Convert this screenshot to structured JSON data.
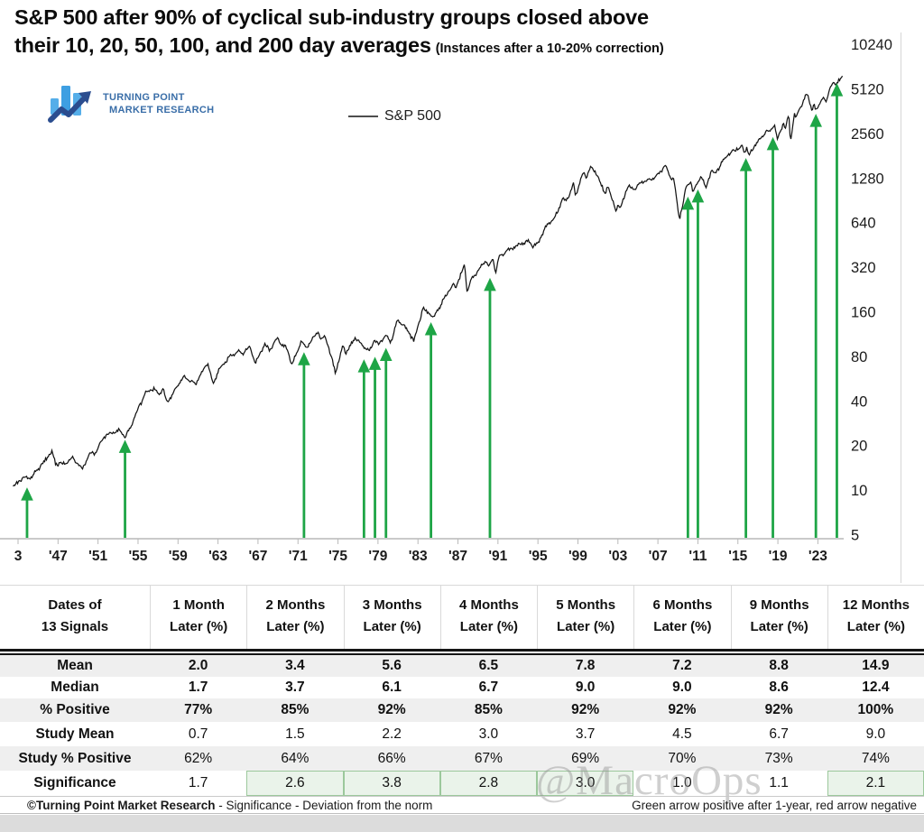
{
  "title": {
    "line1": "S&P 500 after 90% of cyclical sub-industry groups closed above",
    "line2": "their 10, 20, 50, 100, and 200 day averages",
    "subtitle": "(Instances after a 10-20% correction)"
  },
  "logo": {
    "line1": "TURNING POINT",
    "line2": "MARKET RESEARCH"
  },
  "legend": {
    "label": "S&P 500"
  },
  "watermark": "@MacroOps",
  "colors": {
    "arrow_green": "#1ea546",
    "line": "#141414",
    "axis_gray": "#b9b9b9",
    "frame_gray": "#d9d9d9",
    "row_alt": "#efefef",
    "highlight_bg": "#eaf3ea",
    "highlight_border": "#9cc89c",
    "logo_light_blue": "#55aee9",
    "logo_mid_blue": "#3e9fe2",
    "logo_navy": "#2b4d8f"
  },
  "chart_data": {
    "type": "line",
    "title": "S&P 500 after 90% of cyclical sub-industry groups closed above their 10, 20, 50, 100, and 200 day averages (Instances after a 10-20% correction)",
    "ylabel": "",
    "xlabel": "",
    "y_scale": "log2",
    "grid": false,
    "legend_position": "top-center",
    "y_ticks": [
      10240,
      5120,
      2560,
      1280,
      640,
      320,
      160,
      80,
      40,
      20,
      10,
      5
    ],
    "x_tick_labels": [
      "3",
      "'47",
      "'51",
      "'55",
      "'59",
      "'63",
      "'67",
      "'71",
      "'75",
      "'79",
      "'83",
      "'87",
      "'91",
      "'95",
      "'99",
      "'03",
      "'07",
      "'11",
      "'15",
      "'19",
      "'23"
    ],
    "x_tick_years": [
      1943,
      1947,
      1951,
      1955,
      1959,
      1963,
      1967,
      1971,
      1975,
      1979,
      1983,
      1987,
      1991,
      1995,
      1999,
      2003,
      2007,
      2011,
      2015,
      2019,
      2023
    ],
    "x_range": [
      1942.5,
      2025.5
    ],
    "y_range": [
      5,
      10240
    ],
    "series": [
      {
        "name": "S&P 500",
        "points": [
          [
            1942.5,
            10.8
          ],
          [
            1943.0,
            11.3
          ],
          [
            1943.6,
            12.4
          ],
          [
            1944.2,
            12.1
          ],
          [
            1945.0,
            13.9
          ],
          [
            1945.9,
            16.6
          ],
          [
            1946.4,
            18.6
          ],
          [
            1946.75,
            15.0
          ],
          [
            1947.3,
            15.4
          ],
          [
            1947.8,
            15.0
          ],
          [
            1948.4,
            16.9
          ],
          [
            1949.0,
            15.1
          ],
          [
            1949.45,
            13.9
          ],
          [
            1950.0,
            16.8
          ],
          [
            1950.5,
            18.5
          ],
          [
            1950.65,
            17.7
          ],
          [
            1951.4,
            22.2
          ],
          [
            1951.8,
            23.4
          ],
          [
            1952.6,
            24.9
          ],
          [
            1953.2,
            25.6
          ],
          [
            1953.7,
            23.1
          ],
          [
            1954.3,
            27.5
          ],
          [
            1955.0,
            35.5
          ],
          [
            1955.8,
            45.8
          ],
          [
            1956.6,
            48.7
          ],
          [
            1957.1,
            44.8
          ],
          [
            1957.5,
            48.3
          ],
          [
            1957.95,
            39.3
          ],
          [
            1958.6,
            46.5
          ],
          [
            1959.6,
            59.8
          ],
          [
            1960.2,
            55.3
          ],
          [
            1960.8,
            53.2
          ],
          [
            1961.95,
            72.6
          ],
          [
            1962.5,
            52.6
          ],
          [
            1963.1,
            65.5
          ],
          [
            1964.0,
            78.0
          ],
          [
            1965.0,
            87.5
          ],
          [
            1965.35,
            82.5
          ],
          [
            1966.1,
            93.8
          ],
          [
            1966.75,
            73.5
          ],
          [
            1967.7,
            97.2
          ],
          [
            1968.15,
            88.5
          ],
          [
            1968.9,
            107.5
          ],
          [
            1969.4,
            97.5
          ],
          [
            1969.85,
            91.0
          ],
          [
            1970.4,
            70.5
          ],
          [
            1971.3,
            101.0
          ],
          [
            1971.8,
            92.0
          ],
          [
            1972.95,
            119.0
          ],
          [
            1973.35,
            104.5
          ],
          [
            1973.75,
            109.5
          ],
          [
            1974.75,
            62.5
          ],
          [
            1975.5,
            95.5
          ],
          [
            1975.75,
            84.5
          ],
          [
            1976.7,
            107.5
          ],
          [
            1977.85,
            90.5
          ],
          [
            1978.15,
            87.0
          ],
          [
            1978.65,
            104.5
          ],
          [
            1979.1,
            96.5
          ],
          [
            1979.8,
            111.5
          ],
          [
            1980.25,
            98.5
          ],
          [
            1980.9,
            140.0
          ],
          [
            1981.6,
            129.5
          ],
          [
            1982.6,
            102.5
          ],
          [
            1983.5,
            170.5
          ],
          [
            1984.55,
            147.5
          ],
          [
            1985.5,
            191.0
          ],
          [
            1986.55,
            250.0
          ],
          [
            1986.8,
            236.0
          ],
          [
            1987.65,
            336.0
          ],
          [
            1987.9,
            223.0
          ],
          [
            1988.4,
            268.0
          ],
          [
            1989.75,
            358.0
          ],
          [
            1990.1,
            330.0
          ],
          [
            1990.5,
            368.0
          ],
          [
            1990.8,
            295.0
          ],
          [
            1991.1,
            382.0
          ],
          [
            1992.0,
            418.0
          ],
          [
            1993.0,
            456.0
          ],
          [
            1994.1,
            482.0
          ],
          [
            1994.5,
            444.0
          ],
          [
            1995.0,
            466.0
          ],
          [
            1996.0,
            642.0
          ],
          [
            1996.55,
            668.0
          ],
          [
            1997.55,
            950.0
          ],
          [
            1997.8,
            885.0
          ],
          [
            1998.55,
            1185.0
          ],
          [
            1998.75,
            960.0
          ],
          [
            1999.5,
            1420.0
          ],
          [
            1999.8,
            1282.0
          ],
          [
            2000.25,
            1525.0
          ],
          [
            2000.7,
            1432.0
          ],
          [
            2001.0,
            1320.0
          ],
          [
            2001.7,
            998.0
          ],
          [
            2001.95,
            1158.0
          ],
          [
            2002.75,
            788.0
          ],
          [
            2003.05,
            855.0
          ],
          [
            2003.2,
            802.0
          ],
          [
            2004.0,
            1142.0
          ],
          [
            2004.6,
            1082.0
          ],
          [
            2005.5,
            1232.0
          ],
          [
            2006.4,
            1262.0
          ],
          [
            2007.3,
            1440.0
          ],
          [
            2007.75,
            1562.0
          ],
          [
            2008.2,
            1322.0
          ],
          [
            2008.6,
            1262.0
          ],
          [
            2008.9,
            882.0
          ],
          [
            2009.15,
            678.0
          ],
          [
            2009.8,
            1092.0
          ],
          [
            2010.3,
            1212.0
          ],
          [
            2010.5,
            1028.0
          ],
          [
            2011.3,
            1362.0
          ],
          [
            2011.75,
            1100.0
          ],
          [
            2012.3,
            1412.0
          ],
          [
            2012.85,
            1425.0
          ],
          [
            2013.8,
            1802.0
          ],
          [
            2014.7,
            2012.0
          ],
          [
            2015.4,
            2122.0
          ],
          [
            2015.65,
            1882.0
          ],
          [
            2015.9,
            2092.0
          ],
          [
            2016.1,
            1832.0
          ],
          [
            2016.9,
            2262.0
          ],
          [
            2017.9,
            2692.0
          ],
          [
            2018.1,
            2582.0
          ],
          [
            2018.7,
            2932.0
          ],
          [
            2018.95,
            2352.0
          ],
          [
            2019.55,
            3022.0
          ],
          [
            2019.75,
            2852.0
          ],
          [
            2020.1,
            3382.0
          ],
          [
            2020.25,
            2242.0
          ],
          [
            2020.65,
            3502.0
          ],
          [
            2020.8,
            3272.0
          ],
          [
            2021.9,
            4792.0
          ],
          [
            2022.45,
            3682.0
          ],
          [
            2022.6,
            4282.0
          ],
          [
            2022.75,
            3582.0
          ],
          [
            2023.55,
            4582.0
          ],
          [
            2023.8,
            4122.0
          ],
          [
            2024.2,
            5252.0
          ],
          [
            2024.55,
            5652.0
          ],
          [
            2024.75,
            5402.0
          ],
          [
            2025.1,
            6092.0
          ],
          [
            2025.3,
            5952.0
          ],
          [
            2025.5,
            6202.0
          ]
        ]
      }
    ],
    "signals": {
      "marker": "green-up-arrow",
      "dates": [
        1943.9,
        1953.7,
        1971.6,
        1977.6,
        1978.7,
        1979.8,
        1984.3,
        1990.2,
        2010.0,
        2011.0,
        2015.8,
        2018.5,
        2022.8,
        2024.9
      ],
      "levels": [
        10.5,
        22,
        86,
        77,
        80,
        92,
        137,
        273,
        965,
        1080,
        1760,
        2440,
        3500,
        5640
      ]
    }
  },
  "table": {
    "headers": [
      [
        "Dates of",
        "13 Signals"
      ],
      [
        "1 Month",
        "Later (%)"
      ],
      [
        "2 Months",
        "Later (%)"
      ],
      [
        "3 Months",
        "Later (%)"
      ],
      [
        "4 Months",
        "Later (%)"
      ],
      [
        "5 Months",
        "Later (%)"
      ],
      [
        "6 Months",
        "Later (%)"
      ],
      [
        "9 Months",
        "Later (%)"
      ],
      [
        "12 Months",
        "Later (%)"
      ]
    ],
    "rows": [
      {
        "label": "Mean",
        "values": [
          "2.0",
          "3.4",
          "5.6",
          "6.5",
          "7.8",
          "7.2",
          "8.8",
          "14.9"
        ],
        "bold": true
      },
      {
        "label": "Median",
        "values": [
          "1.7",
          "3.7",
          "6.1",
          "6.7",
          "9.0",
          "9.0",
          "8.6",
          "12.4"
        ],
        "bold": true
      },
      {
        "label": "% Positive",
        "values": [
          "77%",
          "85%",
          "92%",
          "85%",
          "92%",
          "92%",
          "92%",
          "100%"
        ],
        "bold": true
      },
      {
        "label": "Study Mean",
        "values": [
          "0.7",
          "1.5",
          "2.2",
          "3.0",
          "3.7",
          "4.5",
          "6.7",
          "9.0"
        ],
        "bold": false
      },
      {
        "label": "Study % Positive",
        "values": [
          "62%",
          "64%",
          "66%",
          "67%",
          "69%",
          "70%",
          "73%",
          "74%"
        ],
        "bold": false
      },
      {
        "label": "Significance",
        "values": [
          "1.7",
          "2.6",
          "3.8",
          "2.8",
          "3.0",
          "1.0",
          "1.1",
          "2.1"
        ],
        "bold": false,
        "highlight_cols": [
          1,
          2,
          3,
          4,
          7
        ]
      }
    ]
  },
  "footer": {
    "left_bold": "©Turning Point Market Research",
    "left_rest": " - Significance - Deviation from the norm",
    "right": "Green arrow positive after 1-year, red arrow negative"
  }
}
